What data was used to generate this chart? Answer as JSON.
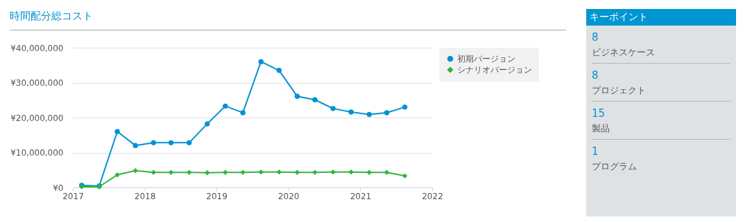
{
  "chart_data": [
    {
      "type": "line",
      "title": "時間配分総コスト",
      "x": [
        "2017-02-15",
        "2017-05-15",
        "2017-08-15",
        "2017-11-15",
        "2018-02-15",
        "2018-05-15",
        "2018-08-15",
        "2018-11-15",
        "2019-02-15",
        "2019-05-15",
        "2019-08-15",
        "2019-11-15",
        "2020-02-15",
        "2020-05-15",
        "2020-08-15",
        "2020-11-15",
        "2021-02-15",
        "2021-05-15",
        "2021-08-15"
      ],
      "series": [
        {
          "name": "初期バージョン",
          "color": "#0092d0",
          "marker": "circle",
          "values": [
            600000,
            400000,
            16000000,
            12000000,
            12800000,
            12800000,
            12800000,
            18200000,
            23300000,
            21400000,
            36000000,
            33500000,
            26100000,
            25100000,
            22600000,
            21600000,
            20900000,
            21400000,
            23000000
          ]
        },
        {
          "name": "シナリオバージョン",
          "color": "#33b53a",
          "marker": "diamond",
          "values": [
            200000,
            200000,
            3600000,
            4800000,
            4300000,
            4300000,
            4300000,
            4200000,
            4300000,
            4300000,
            4400000,
            4400000,
            4300000,
            4300000,
            4400000,
            4400000,
            4300000,
            4300000,
            3300000
          ]
        }
      ],
      "xlim": [
        "2017",
        "2022"
      ],
      "xticks": [
        "2017",
        "2018",
        "2019",
        "2020",
        "2021",
        "2022"
      ],
      "ylim": [
        0,
        40000000
      ],
      "yticks": [
        {
          "value": 0,
          "label": "¥0"
        },
        {
          "value": 10000000,
          "label": "¥10,000,000"
        },
        {
          "value": 20000000,
          "label": "¥20,000,000"
        },
        {
          "value": 30000000,
          "label": "¥30,000,000"
        },
        {
          "value": 40000000,
          "label": "¥40,000,000"
        }
      ],
      "grid": "y",
      "legend": "top right"
    },
    {
      "type": "other",
      "title": "キーポイント",
      "annotations": [
        "8",
        "ビジネスケース",
        "8",
        "プロジェクト",
        "15",
        "製品",
        "1",
        "プログラム"
      ]
    }
  ]
}
